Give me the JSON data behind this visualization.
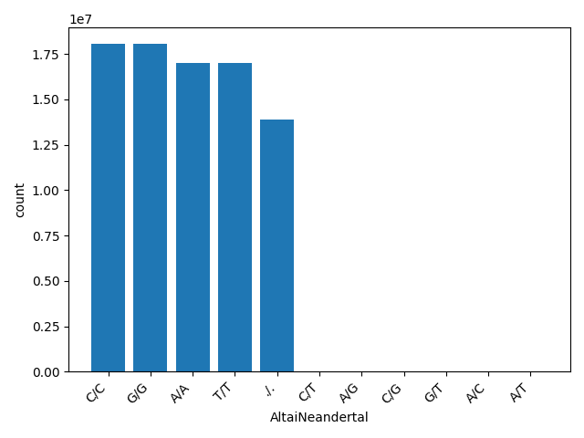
{
  "categories": [
    "C/C",
    "G/G",
    "A/A",
    "T/T",
    "./.",
    "C/T",
    "A/G",
    "C/G",
    "G/T",
    "A/C",
    "A/T"
  ],
  "values": [
    18050000,
    18050000,
    17000000,
    17000000,
    13900000,
    0,
    0,
    0,
    0,
    0,
    0
  ],
  "bar_color": "#1f77b4",
  "xlabel": "AltaiNeandertal",
  "ylabel": "count",
  "rotation": 45,
  "ha": "right"
}
